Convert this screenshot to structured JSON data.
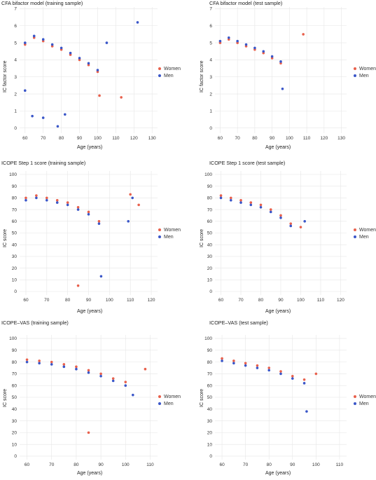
{
  "legend": {
    "women": "Women",
    "men": "Men"
  },
  "colors": {
    "women": "#e8604c",
    "men": "#3a56c8",
    "grid": "#e6e6e6"
  },
  "chart_data": [
    {
      "type": "scatter",
      "title": "CFA bifactor model (training sample)",
      "xlabel": "Age (years)",
      "ylabel": "IC factor score",
      "xlim": [
        57,
        133
      ],
      "ylim": [
        -0.3,
        7.1
      ],
      "xticks": [
        60,
        70,
        80,
        90,
        100,
        110,
        120,
        130
      ],
      "yticks": [
        0,
        1,
        2,
        3,
        4,
        5,
        6,
        7
      ],
      "legend_position": "right",
      "series": [
        {
          "name": "Women",
          "values": [
            [
              60,
              4.9
            ],
            [
              65,
              5.3
            ],
            [
              70,
              5.1
            ],
            [
              75,
              4.8
            ],
            [
              80,
              4.6
            ],
            [
              85,
              4.3
            ],
            [
              90,
              4.0
            ],
            [
              95,
              3.7
            ],
            [
              100,
              3.3
            ],
            [
              113,
              1.8
            ],
            [
              101,
              1.9
            ]
          ]
        },
        {
          "name": "Men",
          "values": [
            [
              60,
              5.0
            ],
            [
              65,
              5.4
            ],
            [
              70,
              5.2
            ],
            [
              75,
              4.9
            ],
            [
              80,
              4.7
            ],
            [
              85,
              4.4
            ],
            [
              90,
              4.1
            ],
            [
              95,
              3.8
            ],
            [
              100,
              3.4
            ],
            [
              122,
              6.2
            ],
            [
              105,
              5.0
            ],
            [
              64,
              0.7
            ],
            [
              70,
              0.6
            ],
            [
              78,
              0.1
            ],
            [
              82,
              0.8
            ],
            [
              60,
              2.2
            ]
          ]
        }
      ]
    },
    {
      "type": "scatter",
      "title": "CFA bifactor model (test sample)",
      "xlabel": "Age (years)",
      "ylabel": "IC factor score",
      "xlim": [
        57,
        133
      ],
      "ylim": [
        -0.3,
        7.1
      ],
      "xticks": [
        60,
        70,
        80,
        90,
        100,
        110,
        120,
        130
      ],
      "yticks": [
        0,
        1,
        2,
        3,
        4,
        5,
        6,
        7
      ],
      "legend_position": "right",
      "series": [
        {
          "name": "Women",
          "values": [
            [
              60,
              5.0
            ],
            [
              65,
              5.2
            ],
            [
              70,
              5.0
            ],
            [
              75,
              4.8
            ],
            [
              80,
              4.6
            ],
            [
              85,
              4.4
            ],
            [
              90,
              4.1
            ],
            [
              95,
              3.8
            ],
            [
              108,
              5.5
            ]
          ]
        },
        {
          "name": "Men",
          "values": [
            [
              60,
              5.1
            ],
            [
              65,
              5.3
            ],
            [
              70,
              5.1
            ],
            [
              75,
              4.9
            ],
            [
              80,
              4.7
            ],
            [
              85,
              4.5
            ],
            [
              90,
              4.2
            ],
            [
              95,
              3.9
            ],
            [
              96,
              2.3
            ]
          ]
        }
      ]
    },
    {
      "type": "scatter",
      "title": "ICOPE Step 1 score (training sample)",
      "xlabel": "Age (years)",
      "ylabel": "IC score",
      "xlim": [
        57,
        123
      ],
      "ylim": [
        -3,
        103
      ],
      "xticks": [
        60,
        70,
        80,
        90,
        100,
        110,
        120
      ],
      "yticks": [
        0,
        10,
        20,
        30,
        40,
        50,
        60,
        70,
        80,
        90,
        100
      ],
      "legend_position": "right",
      "series": [
        {
          "name": "Women",
          "values": [
            [
              60,
              80
            ],
            [
              65,
              82
            ],
            [
              70,
              80
            ],
            [
              75,
              78
            ],
            [
              80,
              76
            ],
            [
              85,
              72
            ],
            [
              90,
              68
            ],
            [
              95,
              60
            ],
            [
              110,
              83
            ],
            [
              114,
              74
            ],
            [
              85,
              5
            ]
          ]
        },
        {
          "name": "Men",
          "values": [
            [
              60,
              78
            ],
            [
              65,
              80
            ],
            [
              70,
              78
            ],
            [
              75,
              76
            ],
            [
              80,
              74
            ],
            [
              85,
              70
            ],
            [
              90,
              66
            ],
            [
              95,
              58
            ],
            [
              111,
              80
            ],
            [
              109,
              60
            ],
            [
              96,
              13
            ]
          ]
        }
      ]
    },
    {
      "type": "scatter",
      "title": "ICOPE Step 1 score (test sample)",
      "xlabel": "Age (years)",
      "ylabel": "IC score",
      "xlim": [
        57,
        123
      ],
      "ylim": [
        -3,
        103
      ],
      "xticks": [
        60,
        70,
        80,
        90,
        100,
        110,
        120
      ],
      "yticks": [
        0,
        10,
        20,
        30,
        40,
        50,
        60,
        70,
        80,
        90,
        100
      ],
      "legend_position": "right",
      "series": [
        {
          "name": "Women",
          "values": [
            [
              60,
              82
            ],
            [
              65,
              80
            ],
            [
              70,
              78
            ],
            [
              75,
              76
            ],
            [
              80,
              74
            ],
            [
              85,
              70
            ],
            [
              90,
              65
            ],
            [
              95,
              58
            ],
            [
              100,
              55
            ]
          ]
        },
        {
          "name": "Men",
          "values": [
            [
              60,
              80
            ],
            [
              65,
              78
            ],
            [
              70,
              76
            ],
            [
              75,
              74
            ],
            [
              80,
              72
            ],
            [
              85,
              68
            ],
            [
              90,
              63
            ],
            [
              95,
              56
            ],
            [
              102,
              60
            ]
          ]
        }
      ]
    },
    {
      "type": "scatter",
      "title": "ICOPE–VAS (training sample)",
      "xlabel": "Age (years)",
      "ylabel": "IC score",
      "xlim": [
        57,
        113
      ],
      "ylim": [
        -3,
        103
      ],
      "xticks": [
        60,
        70,
        80,
        90,
        100,
        110
      ],
      "yticks": [
        0,
        10,
        20,
        30,
        40,
        50,
        60,
        70,
        80,
        90,
        100
      ],
      "legend_position": "right",
      "series": [
        {
          "name": "Women",
          "values": [
            [
              60,
              82
            ],
            [
              65,
              81
            ],
            [
              70,
              80
            ],
            [
              75,
              78
            ],
            [
              80,
              76
            ],
            [
              85,
              73
            ],
            [
              90,
              70
            ],
            [
              95,
              66
            ],
            [
              100,
              63
            ],
            [
              108,
              74
            ],
            [
              85,
              20
            ]
          ]
        },
        {
          "name": "Men",
          "values": [
            [
              60,
              80
            ],
            [
              65,
              79
            ],
            [
              70,
              78
            ],
            [
              75,
              76
            ],
            [
              80,
              74
            ],
            [
              85,
              71
            ],
            [
              90,
              68
            ],
            [
              95,
              64
            ],
            [
              100,
              60
            ],
            [
              103,
              52
            ]
          ]
        }
      ]
    },
    {
      "type": "scatter",
      "title": "ICOPE–VAS (test sample)",
      "xlabel": "Age (years)",
      "ylabel": "IC score",
      "xlim": [
        57,
        113
      ],
      "ylim": [
        -3,
        103
      ],
      "xticks": [
        60,
        70,
        80,
        90,
        100,
        110
      ],
      "yticks": [
        0,
        10,
        20,
        30,
        40,
        50,
        60,
        70,
        80,
        90,
        100
      ],
      "legend_position": "right",
      "series": [
        {
          "name": "Women",
          "values": [
            [
              60,
              83
            ],
            [
              65,
              81
            ],
            [
              70,
              79
            ],
            [
              75,
              77
            ],
            [
              80,
              75
            ],
            [
              85,
              72
            ],
            [
              90,
              68
            ],
            [
              95,
              65
            ],
            [
              100,
              70
            ]
          ]
        },
        {
          "name": "Men",
          "values": [
            [
              60,
              81
            ],
            [
              65,
              79
            ],
            [
              70,
              77
            ],
            [
              75,
              75
            ],
            [
              80,
              73
            ],
            [
              85,
              70
            ],
            [
              90,
              66
            ],
            [
              95,
              62
            ],
            [
              96,
              38
            ]
          ]
        }
      ]
    }
  ]
}
